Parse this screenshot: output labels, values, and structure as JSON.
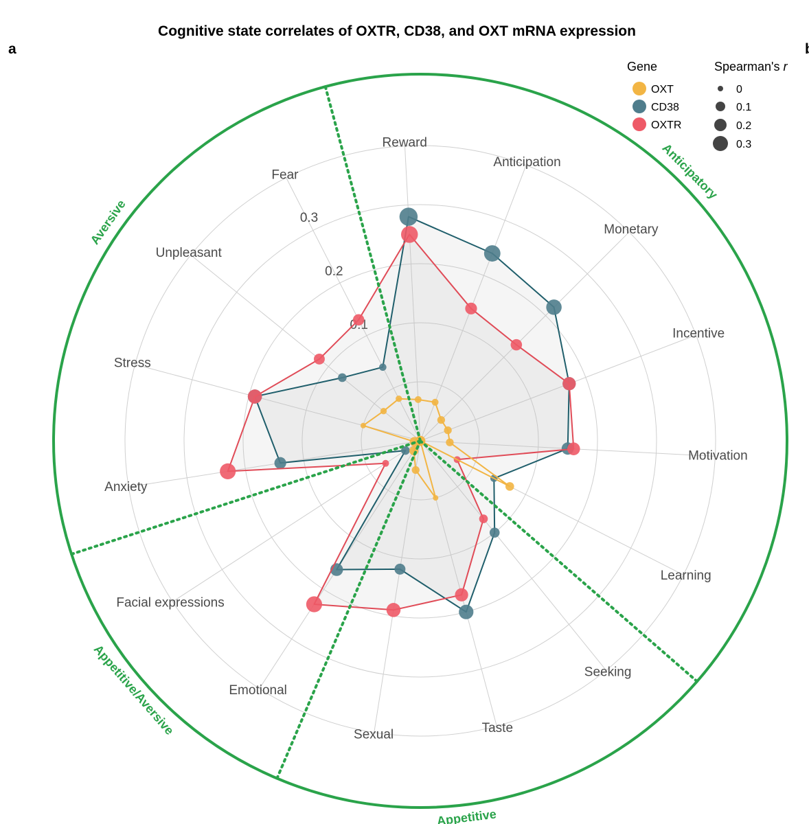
{
  "figure": {
    "panel_label": "a",
    "panel_label_right": "b"
  },
  "chart_data": {
    "type": "radar",
    "title": "Cognitive state correlates of OXTR, CD38, and OXT mRNA expression",
    "axes": [
      "Reward",
      "Anticipation",
      "Monetary",
      "Incentive",
      "Motivation",
      "Learning",
      "Seeking",
      "Taste",
      "Sexual",
      "Emotional",
      "Facial expressions",
      "Anxiety",
      "Stress",
      "Unpleasant",
      "Fear"
    ],
    "radial_ticks": [
      "0.1",
      "0.2",
      "0.3"
    ],
    "radial_range": [
      -0.1,
      0.4
    ],
    "grid_circles": [
      0.0,
      0.1,
      0.2,
      0.3,
      0.4
    ],
    "series": [
      {
        "name": "OXT",
        "color": "#f2b544",
        "values": [
          -0.03,
          -0.03,
          -0.05,
          -0.05,
          -0.05,
          0.07,
          -0.1,
          0.0,
          -0.05,
          -0.08,
          -0.1,
          -0.09,
          0.0,
          -0.02,
          -0.02
        ]
      },
      {
        "name": "CD38",
        "color": "#4f7d8c",
        "values": [
          0.28,
          0.24,
          0.22,
          0.17,
          0.15,
          0.04,
          0.1,
          0.2,
          0.12,
          0.16,
          -0.07,
          0.14,
          0.19,
          0.07,
          0.04
        ]
      },
      {
        "name": "OXTR",
        "color": "#ee5a67",
        "values": [
          0.25,
          0.14,
          0.13,
          0.17,
          0.16,
          -0.03,
          0.07,
          0.17,
          0.19,
          0.23,
          -0.03,
          0.23,
          0.19,
          0.12,
          0.13
        ]
      }
    ],
    "legend": {
      "gene_title": "Gene",
      "size_title": "Spearman's",
      "size_title_var": "r",
      "size_entries": [
        "0",
        "0.1",
        "0.2",
        "0.3"
      ],
      "position": "top-right"
    },
    "groups": [
      {
        "name": "Anticipatory",
        "color": "#2aa34a"
      },
      {
        "name": "Appetitive",
        "color": "#2aa34a"
      },
      {
        "name": "Appetitive/Aversive",
        "color": "#2aa34a"
      },
      {
        "name": "Aversive",
        "color": "#2aa34a"
      }
    ],
    "grid": true
  }
}
